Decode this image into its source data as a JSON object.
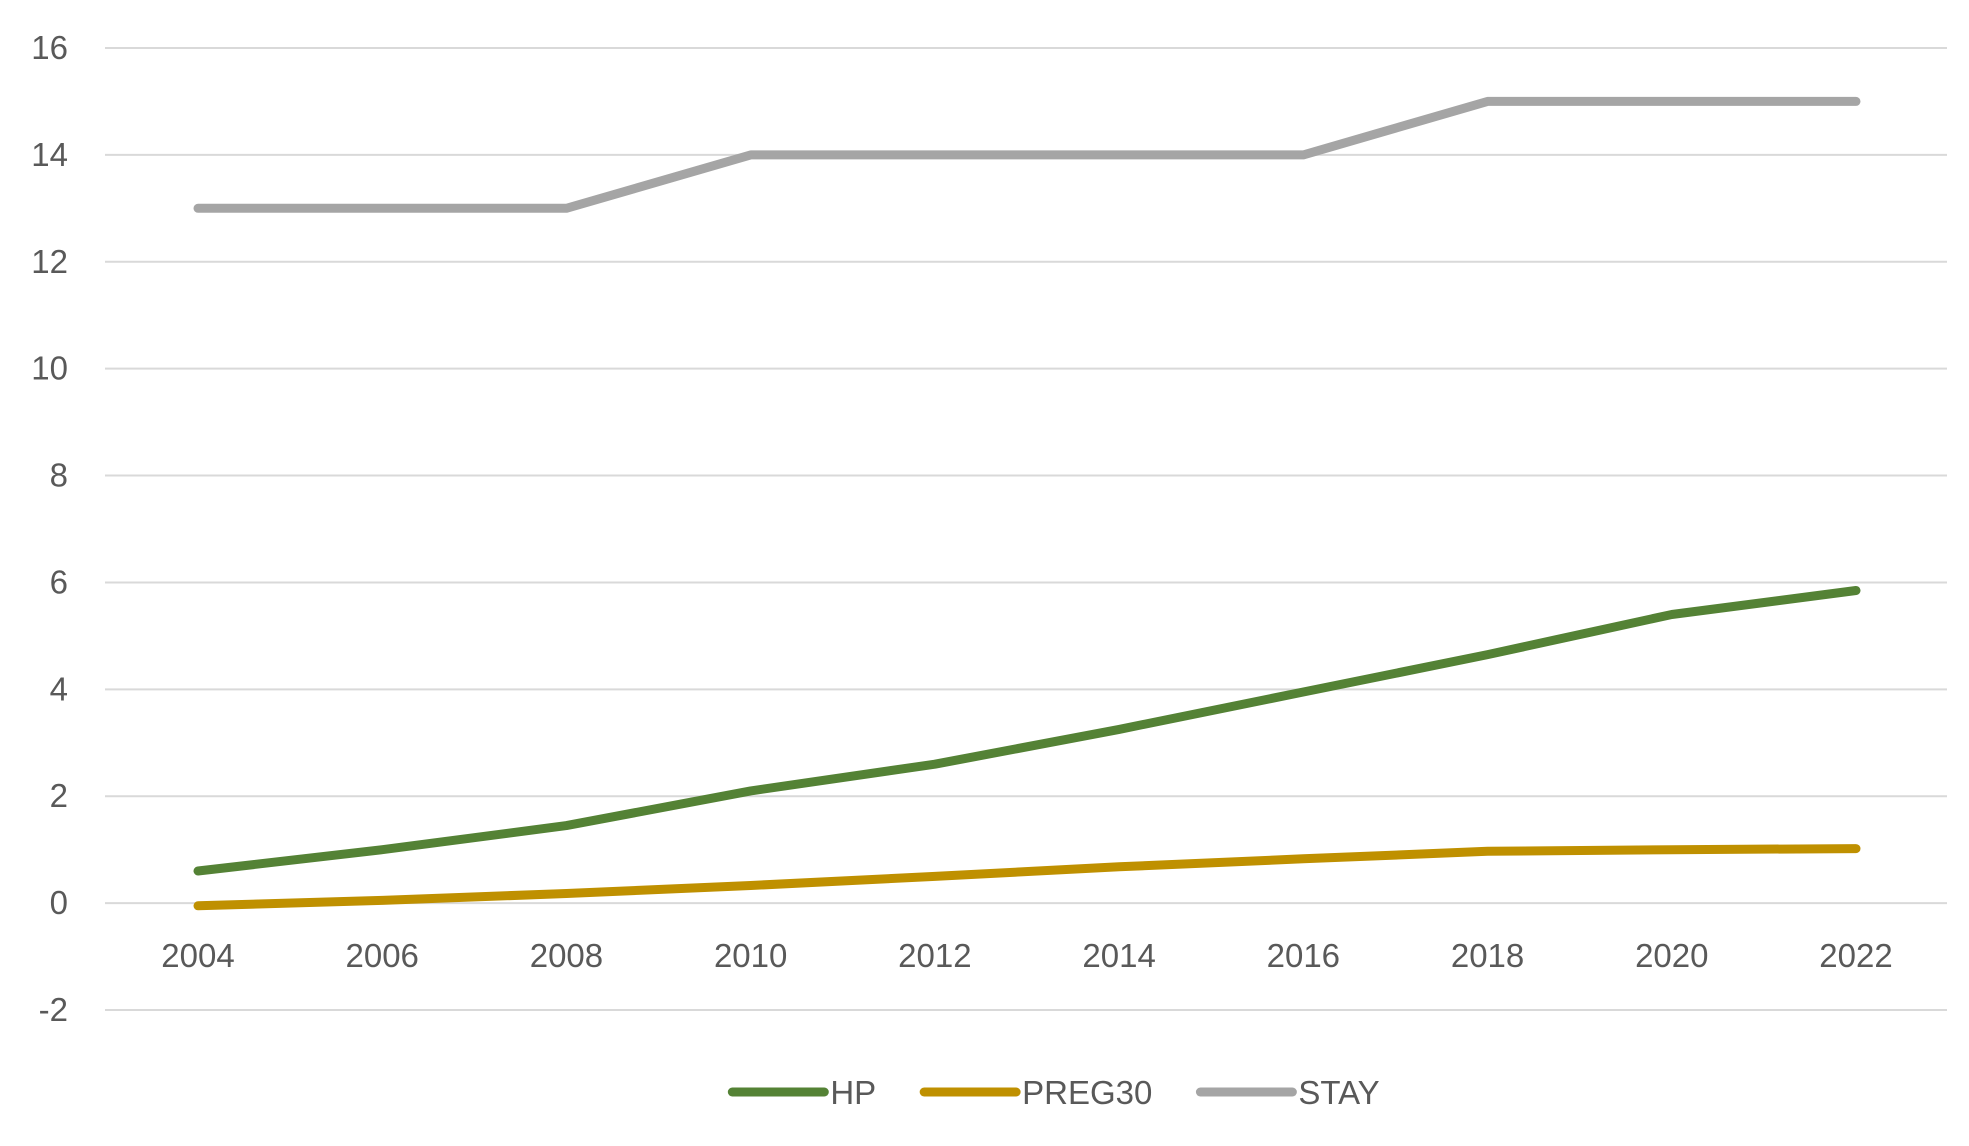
{
  "chart_data": {
    "type": "line",
    "title": "",
    "xlabel": "",
    "ylabel": "",
    "categories": [
      "2004",
      "2006",
      "2008",
      "2010",
      "2012",
      "2014",
      "2016",
      "2018",
      "2020",
      "2022"
    ],
    "ylim": [
      -2,
      16
    ],
    "yticks": [
      -2,
      0,
      2,
      4,
      6,
      8,
      10,
      12,
      14,
      16
    ],
    "grid": true,
    "legend_position": "bottom-center",
    "series": [
      {
        "name": "HP",
        "color": "#548235",
        "values": [
          0.6,
          1.0,
          1.45,
          2.1,
          2.6,
          3.25,
          3.95,
          4.65,
          5.4,
          5.85
        ]
      },
      {
        "name": "PREG30",
        "color": "#bf9000",
        "values": [
          -0.05,
          0.05,
          0.18,
          0.33,
          0.5,
          0.68,
          0.83,
          0.97,
          1.0,
          1.02
        ]
      },
      {
        "name": "STAY",
        "color": "#a5a5a5",
        "values": [
          13,
          13,
          13,
          14,
          14,
          14,
          14,
          15,
          15,
          15
        ]
      }
    ]
  }
}
